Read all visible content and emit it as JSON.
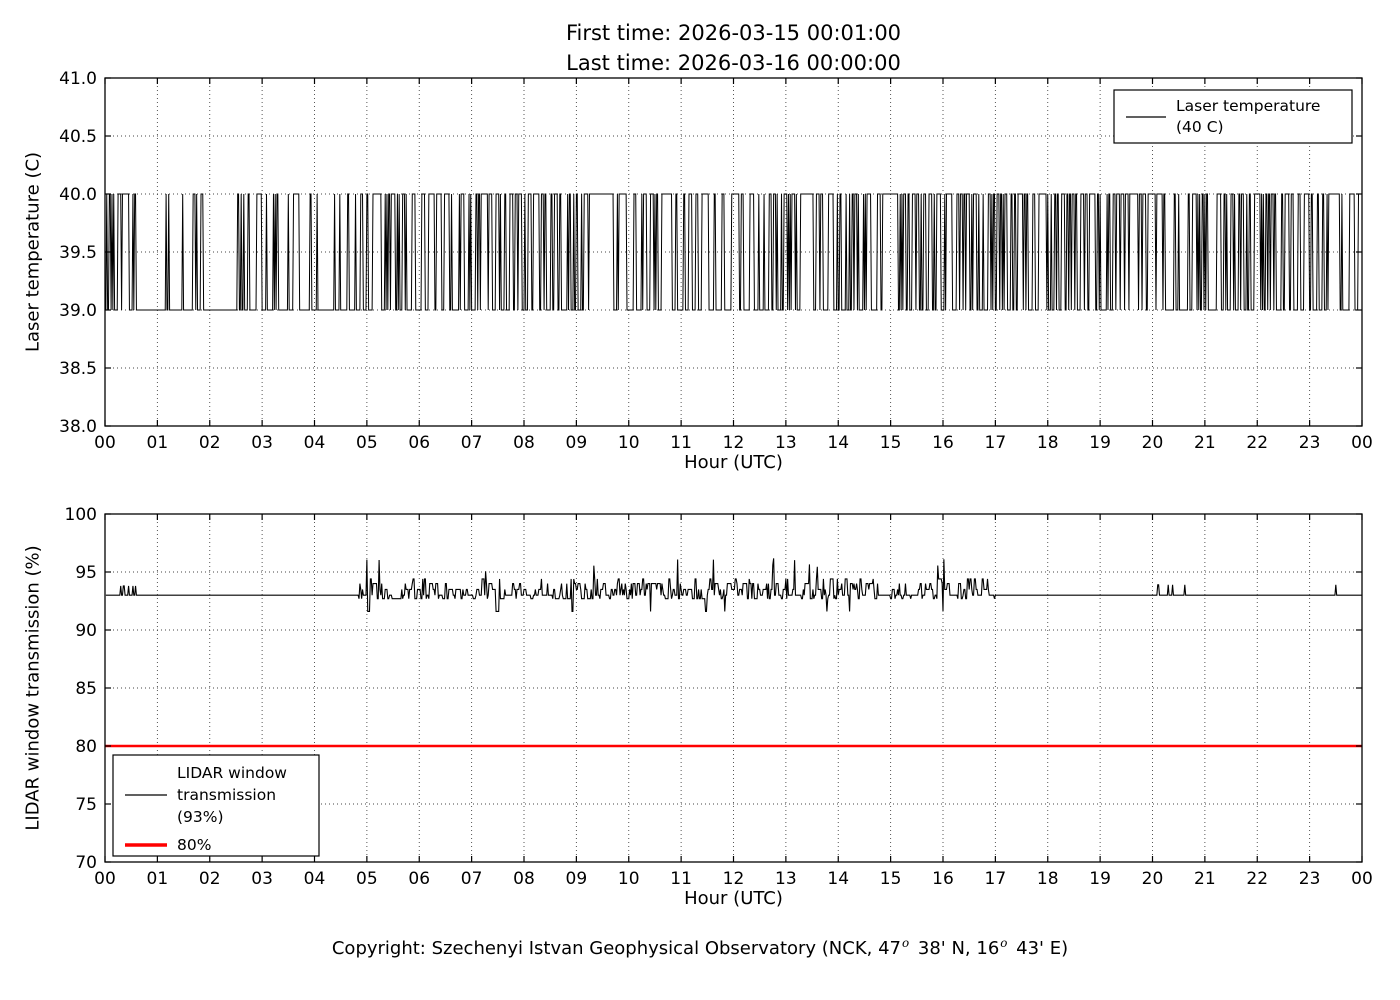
{
  "figure": {
    "title_line1": "First time: 2026-03-15 00:01:00",
    "title_line2": "Last time: 2026-03-16 00:00:00",
    "copyright": {
      "part1": "Copyright: Szechenyi Istvan Geophysical Observatory (NCK, 47",
      "sup1": "o",
      "part2": " 38' N, 16",
      "sup2": "o",
      "part3": " 43' E)"
    }
  },
  "noise_seed": 20260315,
  "chart_data": [
    {
      "type": "line",
      "title": "",
      "xlabel": "Hour (UTC)",
      "ylabel": "Laser temperature (C)",
      "xlim": [
        0,
        24
      ],
      "ylim": [
        38.0,
        41.0
      ],
      "xticks": [
        0,
        1,
        2,
        3,
        4,
        5,
        6,
        7,
        8,
        9,
        10,
        11,
        12,
        13,
        14,
        15,
        16,
        17,
        18,
        19,
        20,
        21,
        22,
        23,
        24
      ],
      "xtick_labels": [
        "00",
        "01",
        "02",
        "03",
        "04",
        "05",
        "06",
        "07",
        "08",
        "09",
        "10",
        "11",
        "12",
        "13",
        "14",
        "15",
        "16",
        "17",
        "18",
        "19",
        "20",
        "21",
        "22",
        "23",
        "00"
      ],
      "yticks": [
        38.0,
        38.5,
        39.0,
        39.5,
        40.0,
        40.5,
        41.0
      ],
      "ytick_labels": [
        "38.0",
        "38.5",
        "39.0",
        "39.5",
        "40.0",
        "40.5",
        "41.0"
      ],
      "grid": true,
      "legend_position": "upper right",
      "legend": [
        {
          "lines": [
            "Laser temperature",
            "(40 C)"
          ],
          "color": "#000000",
          "sample_width": 1.2
        }
      ],
      "series": [
        {
          "name": "Laser temperature (40 C)",
          "color": "#000000",
          "line_width": 1.0,
          "generator": {
            "kind": "telegraph",
            "low": 39.0,
            "high": 40.0,
            "start_minute": 1,
            "end_minute": 1440,
            "step_minutes": 1,
            "segments": [
              {
                "start": 0.0,
                "end": 0.6,
                "p_up": 0.5,
                "p_down": 0.45
              },
              {
                "start": 0.6,
                "end": 1.05,
                "p_up": 0.02,
                "p_down": 0.8
              },
              {
                "start": 1.05,
                "end": 2.35,
                "p_up": 0.07,
                "p_down": 0.55
              },
              {
                "start": 2.35,
                "end": 3.2,
                "p_up": 0.22,
                "p_down": 0.38
              },
              {
                "start": 3.2,
                "end": 4.85,
                "p_up": 0.18,
                "p_down": 0.42
              },
              {
                "start": 4.85,
                "end": 7.1,
                "p_up": 0.28,
                "p_down": 0.38
              },
              {
                "start": 7.1,
                "end": 9.35,
                "p_up": 0.33,
                "p_down": 0.35
              },
              {
                "start": 9.35,
                "end": 9.65,
                "p_up": 1.0,
                "p_down": 0.0
              },
              {
                "start": 9.65,
                "end": 12.1,
                "p_up": 0.33,
                "p_down": 0.33
              },
              {
                "start": 12.1,
                "end": 14.85,
                "p_up": 0.28,
                "p_down": 0.35
              },
              {
                "start": 14.85,
                "end": 15.12,
                "p_up": 1.0,
                "p_down": 0.0
              },
              {
                "start": 15.12,
                "end": 17.3,
                "p_up": 0.5,
                "p_down": 0.42
              },
              {
                "start": 17.3,
                "end": 19.55,
                "p_up": 0.45,
                "p_down": 0.38
              },
              {
                "start": 19.55,
                "end": 20.25,
                "p_up": 0.6,
                "p_down": 0.05
              },
              {
                "start": 20.25,
                "end": 20.75,
                "p_up": 0.06,
                "p_down": 0.6
              },
              {
                "start": 20.75,
                "end": 23.2,
                "p_up": 0.38,
                "p_down": 0.38
              },
              {
                "start": 23.2,
                "end": 23.92,
                "p_up": 0.18,
                "p_down": 0.3
              },
              {
                "start": 23.92,
                "end": 24.0,
                "p_up": 1.0,
                "p_down": 0.0
              }
            ]
          }
        }
      ]
    },
    {
      "type": "line",
      "title": "",
      "xlabel": "Hour (UTC)",
      "ylabel": "LIDAR window transmission (%)",
      "xlim": [
        0,
        24
      ],
      "ylim": [
        70,
        100
      ],
      "xticks": [
        0,
        1,
        2,
        3,
        4,
        5,
        6,
        7,
        8,
        9,
        10,
        11,
        12,
        13,
        14,
        15,
        16,
        17,
        18,
        19,
        20,
        21,
        22,
        23,
        24
      ],
      "xtick_labels": [
        "00",
        "01",
        "02",
        "03",
        "04",
        "05",
        "06",
        "07",
        "08",
        "09",
        "10",
        "11",
        "12",
        "13",
        "14",
        "15",
        "16",
        "17",
        "18",
        "19",
        "20",
        "21",
        "22",
        "23",
        "00"
      ],
      "yticks": [
        70,
        75,
        80,
        85,
        90,
        95,
        100
      ],
      "ytick_labels": [
        "70",
        "75",
        "80",
        "85",
        "90",
        "95",
        "100"
      ],
      "grid": true,
      "legend_position": "lower left",
      "legend": [
        {
          "lines": [
            "LIDAR window",
            "transmission",
            "(93%)"
          ],
          "color": "#000000",
          "sample_width": 1.2,
          "sample_line": 1
        },
        {
          "lines": [
            "80%"
          ],
          "color": "#ff0000",
          "sample_width": 3.5
        }
      ],
      "series": [
        {
          "name": "LIDAR window transmission (93%)",
          "color": "#000000",
          "line_width": 1.1,
          "generator": {
            "kind": "noisy_baseline",
            "baseline": 93.0,
            "start_minute": 1,
            "end_minute": 1440,
            "step_minutes": 1,
            "noise_levels": [
              93.0,
              93.5,
              92.7,
              94.0,
              94.4
            ],
            "noise_cum_probs": [
              0.3,
              0.52,
              0.72,
              0.88,
              0.95
            ],
            "dip_value": 91.6,
            "spike_range": [
              95.0,
              96.2
            ],
            "hold_prob": 0.42,
            "segments": [
              {
                "start": 0.0,
                "end": 0.15,
                "mode": "flat"
              },
              {
                "start": 0.15,
                "end": 0.65,
                "mode": "blips",
                "count": 6,
                "amp": 0.8
              },
              {
                "start": 0.65,
                "end": 4.85,
                "mode": "flat"
              },
              {
                "start": 4.85,
                "end": 17.0,
                "mode": "noise"
              },
              {
                "start": 17.0,
                "end": 19.85,
                "mode": "flat"
              },
              {
                "start": 19.85,
                "end": 20.68,
                "mode": "blips",
                "count": 4,
                "amp": 0.9
              },
              {
                "start": 20.68,
                "end": 23.28,
                "mode": "flat"
              },
              {
                "start": 23.28,
                "end": 23.55,
                "mode": "blips",
                "count": 2,
                "amp": 0.9
              },
              {
                "start": 23.55,
                "end": 24.0,
                "mode": "flat"
              }
            ]
          }
        },
        {
          "name": "80%",
          "color": "#ff0000",
          "line_width": 2.6,
          "generator": {
            "kind": "constant",
            "value": 80
          }
        }
      ]
    }
  ]
}
